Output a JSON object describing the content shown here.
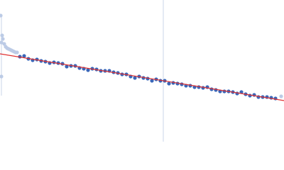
{
  "chart_data": {
    "type": "scatter",
    "xlim": [
      0,
      400
    ],
    "ylim": [
      0,
      200
    ],
    "reference_x": 230,
    "reference_color": "#c9d4ea",
    "series": [
      {
        "color": "#3a66b8",
        "x": [
          28,
          34,
          40,
          46,
          52,
          58,
          64,
          70,
          76,
          82,
          88,
          94,
          100,
          106,
          112,
          118,
          124,
          130,
          136,
          142,
          148,
          154,
          160,
          166,
          172,
          178,
          184,
          190,
          196,
          202,
          208,
          214,
          220,
          226,
          232,
          238,
          244,
          250,
          256,
          262,
          268,
          274,
          280,
          286,
          292,
          298,
          304,
          310,
          316,
          322,
          328,
          334,
          340,
          346,
          352,
          358,
          364,
          370,
          376,
          382,
          388
        ],
        "values": [
          120,
          121,
          117,
          115,
          116,
          114,
          113,
          111,
          112,
          111,
          110,
          106,
          107,
          107,
          104,
          103,
          101,
          103,
          102,
          100,
          100,
          100,
          98,
          97,
          95,
          95,
          92,
          90,
          92,
          90,
          89,
          86,
          88,
          86,
          86,
          82,
          83,
          82,
          81,
          79,
          79,
          77,
          77,
          76,
          77,
          74,
          73,
          71,
          71,
          71,
          70,
          68,
          70,
          67,
          65,
          66,
          63,
          63,
          63,
          62,
          61
        ]
      },
      {
        "color": "#bccbe6",
        "x": [
          1,
          2,
          3,
          4,
          6,
          8,
          10,
          12,
          14,
          16,
          18,
          20,
          22,
          24,
          2,
          396
        ],
        "values": [
          178,
          140,
          150,
          145,
          138,
          134,
          132,
          131,
          130,
          129,
          128,
          127,
          126,
          126,
          92,
          64
        ]
      },
      {
        "type": "line",
        "color": "#e03030",
        "x": [
          0,
          400
        ],
        "values": [
          124,
          58
        ]
      }
    ]
  }
}
